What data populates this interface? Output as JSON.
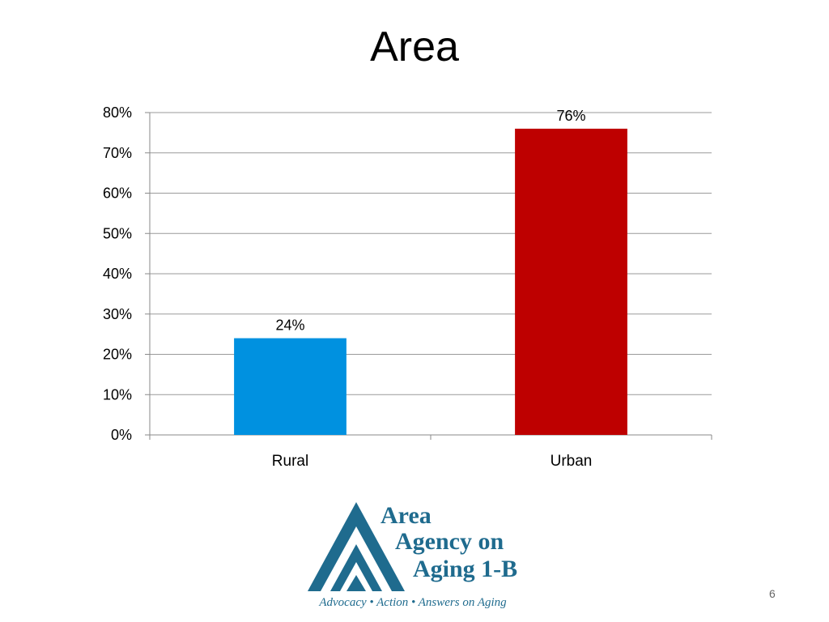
{
  "slide": {
    "title": "Area",
    "number": "6"
  },
  "chart_data": {
    "type": "bar",
    "title": "",
    "xlabel": "",
    "ylabel": "",
    "categories": [
      "Rural",
      "Urban"
    ],
    "values": [
      24,
      76
    ],
    "data_labels": [
      "24%",
      "76%"
    ],
    "bar_colors": [
      "#0091E0",
      "#BE0000"
    ],
    "ylim": [
      0,
      80
    ],
    "yticks": [
      0,
      10,
      20,
      30,
      40,
      50,
      60,
      70,
      80
    ],
    "ytick_format": "%",
    "grid": true,
    "legend": "none"
  },
  "logo": {
    "line1": "Area",
    "line2": "Agency on",
    "line3": "Aging 1-B",
    "tagline": "Advocacy • Action • Answers on Aging",
    "color": "#1F6B8E"
  }
}
